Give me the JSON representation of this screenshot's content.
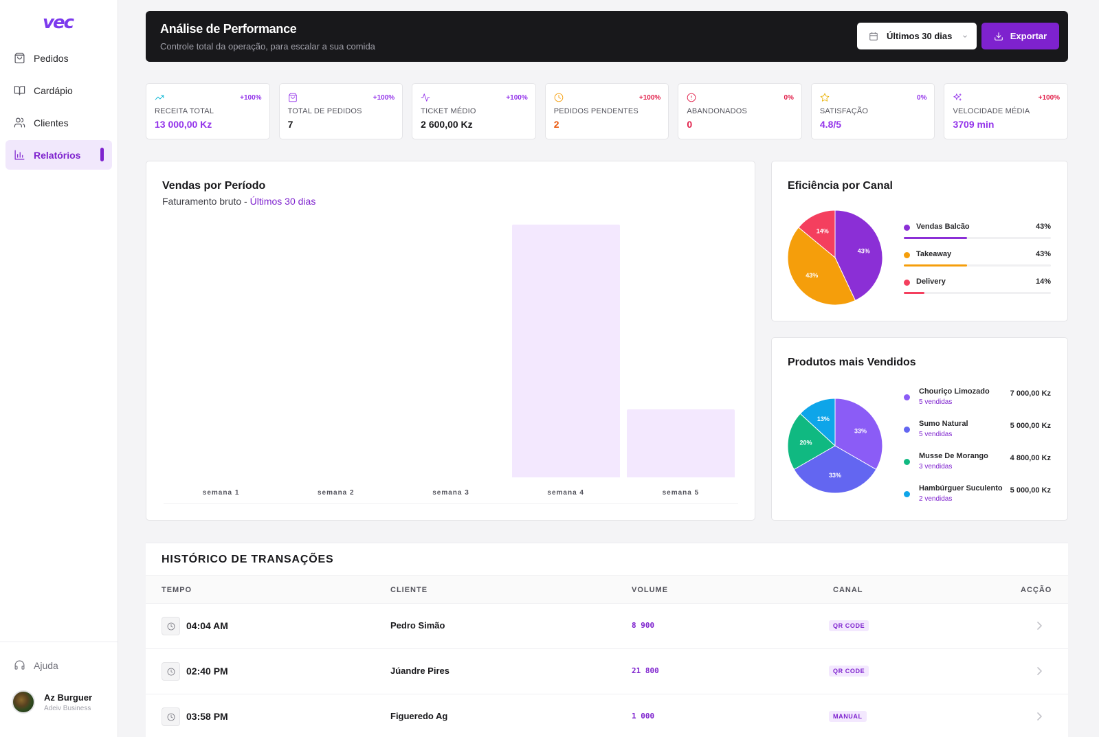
{
  "app": {
    "logo": "vec"
  },
  "sidebar": {
    "items": [
      {
        "label": "Pedidos",
        "icon": "shopping-bag-icon"
      },
      {
        "label": "Cardápio",
        "icon": "book-open-icon"
      },
      {
        "label": "Clientes",
        "icon": "users-icon"
      },
      {
        "label": "Relatórios",
        "icon": "bar-chart-icon",
        "active": true
      }
    ],
    "help": {
      "label": "Ajuda",
      "icon": "headset-icon"
    },
    "user": {
      "name": "Az Burguer",
      "subtitle": "Adeiv Business"
    }
  },
  "header": {
    "title": "Análise de Performance",
    "subtitle": "Controle total da operação, para escalar a sua comida",
    "date_filter": "Últimos 30 dias",
    "export_label": "Exportar"
  },
  "kpis": [
    {
      "label": "RECEITA TOTAL",
      "value": "13 000,00 Kz",
      "change": "+100%",
      "icon": "trending-up-icon",
      "icon_color": "#06b6d4",
      "value_color": "#9333ea",
      "change_color": "#9333ea"
    },
    {
      "label": "TOTAL DE PEDIDOS",
      "value": "7",
      "change": "+100%",
      "icon": "shopping-bag-icon",
      "icon_color": "#9333ea",
      "value_color": "#18181b",
      "change_color": "#9333ea"
    },
    {
      "label": "TICKET MÉDIO",
      "value": "2 600,00 Kz",
      "change": "+100%",
      "icon": "activity-icon",
      "icon_color": "#9333ea",
      "value_color": "#18181b",
      "change_color": "#9333ea"
    },
    {
      "label": "PEDIDOS PENDENTES",
      "value": "2",
      "change": "+100%",
      "icon": "clock-icon",
      "icon_color": "#f59e0b",
      "value_color": "#ea580c",
      "change_color": "#e11d48"
    },
    {
      "label": "ABANDONADOS",
      "value": "0",
      "change": "0%",
      "icon": "alert-circle-icon",
      "icon_color": "#e11d48",
      "value_color": "#e11d48",
      "change_color": "#e11d48"
    },
    {
      "label": "SATISFAÇÃO",
      "value": "4.8/5",
      "change": "0%",
      "icon": "star-icon",
      "icon_color": "#eab308",
      "value_color": "#9333ea",
      "change_color": "#9333ea"
    },
    {
      "label": "VELOCIDADE MÉDIA",
      "value": "3709 min",
      "change": "+100%",
      "icon": "sparkles-icon",
      "icon_color": "#9333ea",
      "value_color": "#9333ea",
      "change_color": "#e11d48"
    }
  ],
  "sales": {
    "title": "Vendas por Período",
    "subtitle_prefix": "Faturamento bruto - ",
    "subtitle_range": "Últimos 30 dias"
  },
  "chart_data": [
    {
      "type": "bar",
      "title": "Vendas por Período",
      "subtitle": "Faturamento bruto - Últimos 30 dias",
      "categories": [
        "semana 1",
        "semana 2",
        "semana 3",
        "semana 4",
        "semana 5"
      ],
      "values": [
        0,
        0,
        0,
        100,
        27
      ],
      "ylim": [
        0,
        100
      ],
      "grid": false,
      "color": "#f3e8fe"
    },
    {
      "type": "pie",
      "title": "Eficiência por Canal",
      "slices": [
        {
          "label": "Vendas Balcão",
          "value": 43,
          "color": "#8b2fd6"
        },
        {
          "label": "Takeaway",
          "value": 43,
          "color": "#f59e0b"
        },
        {
          "label": "Delivery",
          "value": 14,
          "color": "#f43f5e"
        }
      ]
    },
    {
      "type": "pie",
      "title": "Produtos mais Vendidos",
      "slices": [
        {
          "label": "Chouriço Limozado",
          "value": 33,
          "color": "#8b5cf6"
        },
        {
          "label": "Sumo Natural",
          "value": 33,
          "color": "#6366f1"
        },
        {
          "label": "Musse De Morango",
          "value": 20,
          "color": "#10b981"
        },
        {
          "label": "Hambúrguer Suculento",
          "value": 13,
          "color": "#0ea5e9"
        }
      ]
    }
  ],
  "channels": {
    "title": "Eficiência por Canal",
    "items": [
      {
        "name": "Vendas Balcão",
        "pct": "43%",
        "fill": 0.43,
        "color": "#8b2fd6"
      },
      {
        "name": "Takeaway",
        "pct": "43%",
        "fill": 0.43,
        "color": "#f59e0b"
      },
      {
        "name": "Delivery",
        "pct": "14%",
        "fill": 0.14,
        "color": "#f43f5e"
      }
    ]
  },
  "products": {
    "title": "Produtos mais Vendidos",
    "items": [
      {
        "name": "Chouriço Limozado",
        "sold": "5 vendidas",
        "amount": "7 000,00 Kz",
        "color": "#8b5cf6"
      },
      {
        "name": "Sumo Natural",
        "sold": "5 vendidas",
        "amount": "5 000,00 Kz",
        "color": "#6366f1"
      },
      {
        "name": "Musse De Morango",
        "sold": "3 vendidas",
        "amount": "4 800,00 Kz",
        "color": "#10b981"
      },
      {
        "name": "Hambúrguer Suculento",
        "sold": "2 vendidas",
        "amount": "5 000,00 Kz",
        "color": "#0ea5e9"
      }
    ]
  },
  "transactions": {
    "title": "HISTÓRICO DE TRANSAÇÕES",
    "columns": [
      "TEMPO",
      "CLIENTE",
      "VOLUME",
      "CANAL",
      "ACÇÃO"
    ],
    "rows": [
      {
        "time": "04:04 AM",
        "client": "Pedro Simão",
        "volume": "8 900",
        "channel": "QR CODE"
      },
      {
        "time": "02:40 PM",
        "client": "Júandre Pires",
        "volume": "21 800",
        "channel": "QR CODE"
      },
      {
        "time": "03:58 PM",
        "client": "Figueredo Ag",
        "volume": "1 000",
        "channel": "MANUAL"
      }
    ]
  }
}
